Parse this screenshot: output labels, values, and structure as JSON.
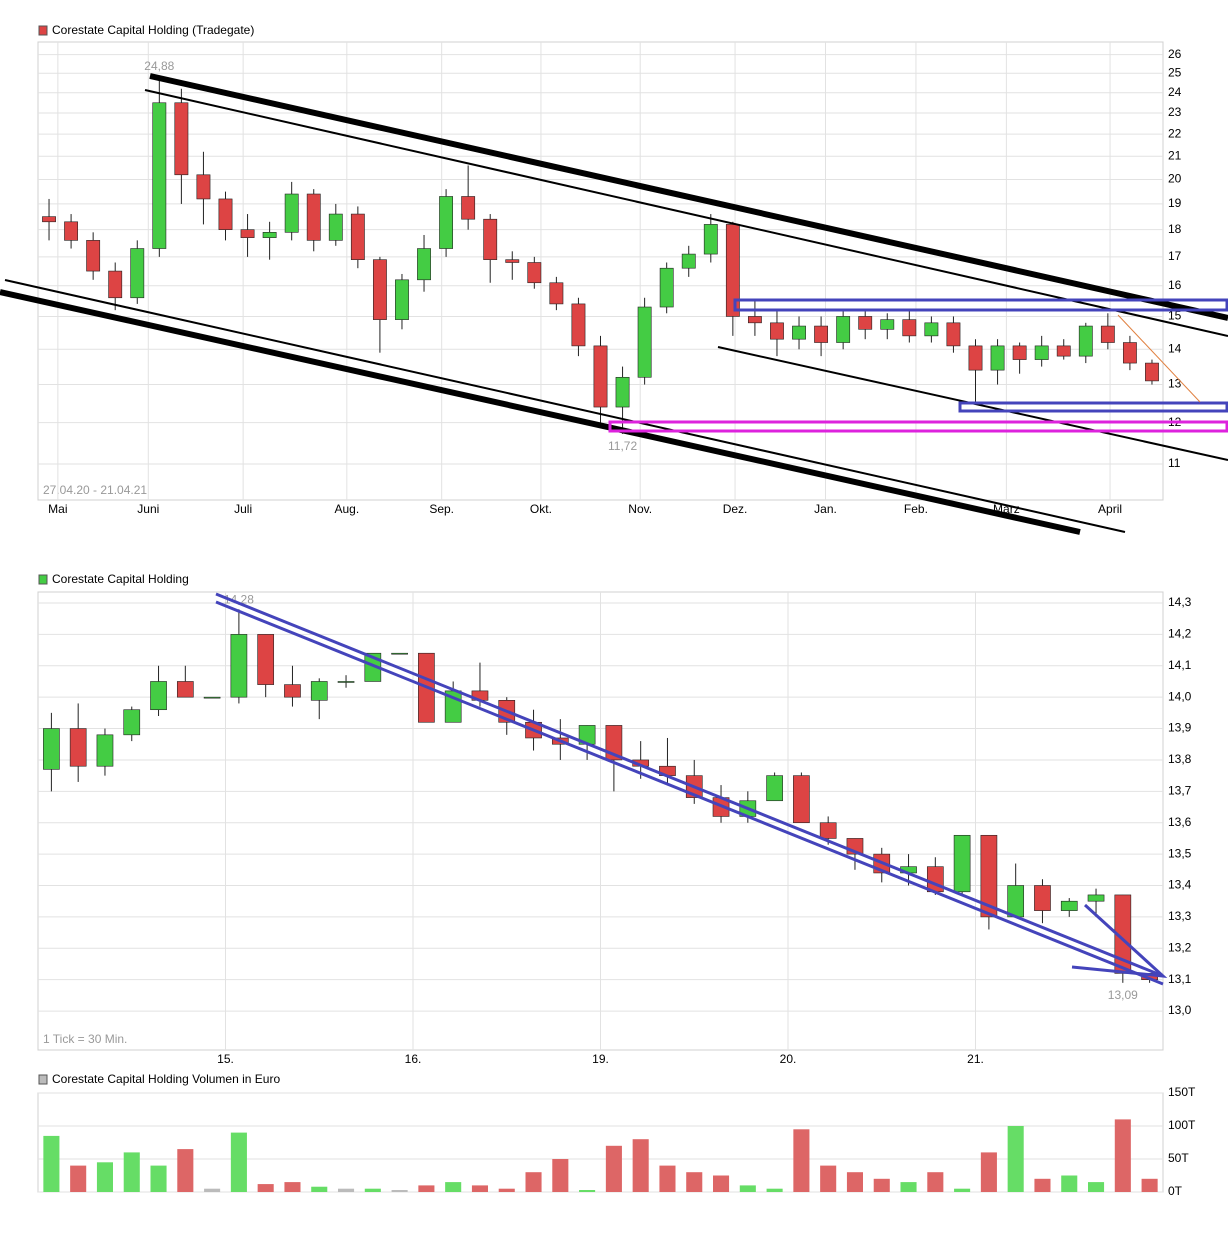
{
  "chart_data": [
    {
      "type": "candlestick",
      "title": "Corestate Capital Holding (Tradegate)",
      "date_range": "27.04.20 - 21.04.21",
      "max_label": "24,88",
      "min_label": "11,72",
      "log": true,
      "grid": true,
      "up_color": "#44cc44",
      "down_color": "#dd4444",
      "open": [
        18.5,
        18.3,
        17.6,
        16.5,
        15.6,
        17.3,
        23.5,
        20.2,
        19.2,
        18.0,
        17.7,
        17.9,
        19.4,
        17.6,
        18.6,
        16.9,
        14.9,
        16.2,
        17.3,
        19.3,
        18.4,
        16.9,
        16.8,
        16.1,
        15.4,
        14.1,
        12.4,
        13.2,
        15.3,
        16.6,
        17.1,
        18.2,
        15.0,
        14.8,
        14.3,
        14.7,
        14.2,
        15.0,
        14.6,
        14.9,
        14.4,
        14.8,
        14.1,
        13.4,
        14.1,
        13.7,
        14.1,
        13.8,
        14.7,
        14.2,
        13.6
      ],
      "high": [
        19.2,
        18.6,
        17.9,
        16.8,
        17.6,
        24.88,
        24.2,
        21.2,
        19.5,
        18.6,
        18.3,
        19.9,
        19.6,
        19.0,
        18.9,
        17.0,
        16.4,
        17.8,
        19.6,
        20.6,
        18.6,
        17.2,
        17.0,
        16.3,
        15.6,
        14.4,
        13.5,
        15.6,
        16.8,
        17.4,
        18.6,
        18.3,
        15.5,
        15.2,
        15.0,
        15.0,
        15.2,
        15.2,
        15.1,
        15.2,
        15.0,
        15.0,
        14.3,
        14.3,
        14.2,
        14.4,
        14.3,
        14.8,
        15.1,
        14.4,
        13.7
      ],
      "low": [
        17.6,
        17.3,
        16.2,
        15.2,
        15.4,
        17.0,
        19.0,
        18.2,
        17.6,
        17.0,
        16.9,
        17.6,
        17.2,
        17.4,
        16.6,
        13.9,
        14.6,
        15.8,
        17.0,
        18.0,
        16.1,
        16.2,
        15.9,
        15.2,
        13.8,
        12.0,
        11.72,
        13.0,
        15.1,
        16.3,
        16.8,
        14.4,
        14.4,
        13.8,
        14.0,
        13.8,
        14.0,
        14.3,
        14.3,
        14.2,
        14.2,
        13.9,
        12.5,
        13.0,
        13.3,
        13.5,
        13.7,
        13.6,
        14.0,
        13.4,
        13.0
      ],
      "close": [
        18.3,
        17.6,
        16.5,
        15.6,
        17.3,
        23.5,
        20.2,
        19.2,
        18.0,
        17.7,
        17.9,
        19.4,
        17.6,
        18.6,
        16.9,
        14.9,
        16.2,
        17.3,
        19.3,
        18.4,
        16.9,
        16.8,
        16.1,
        15.4,
        14.1,
        12.4,
        13.2,
        15.3,
        16.6,
        17.1,
        18.2,
        15.0,
        14.8,
        14.3,
        14.7,
        14.2,
        15.0,
        14.6,
        14.9,
        14.4,
        14.8,
        14.1,
        13.4,
        14.1,
        13.7,
        14.1,
        13.8,
        14.7,
        14.2,
        13.6,
        13.1
      ],
      "xlim": [
        0,
        51
      ],
      "xticks": [
        {
          "value": 0.9,
          "label": "Mai"
        },
        {
          "value": 5,
          "label": "Juni"
        },
        {
          "value": 9.3,
          "label": "Juli"
        },
        {
          "value": 14,
          "label": "Aug."
        },
        {
          "value": 18.3,
          "label": "Sep."
        },
        {
          "value": 22.8,
          "label": "Okt."
        },
        {
          "value": 27.3,
          "label": "Nov."
        },
        {
          "value": 31.6,
          "label": "Dez."
        },
        {
          "value": 35.7,
          "label": "Jan."
        },
        {
          "value": 39.8,
          "label": "Feb."
        },
        {
          "value": 43.9,
          "label": "März"
        },
        {
          "value": 48.6,
          "label": "April"
        }
      ],
      "ylim": [
        10.2,
        26.7
      ],
      "yticks": [
        11,
        12,
        13,
        14,
        15,
        16,
        17,
        18,
        19,
        20,
        21,
        22,
        23,
        24,
        25,
        26
      ]
    },
    {
      "type": "candlestick",
      "title": "Corestate Capital Holding",
      "footnote": "1 Tick = 30 Min.",
      "max_label": "14,28",
      "min_label": "13,09",
      "log": false,
      "grid": true,
      "up_color": "#44cc44",
      "down_color": "#dd4444",
      "open": [
        13.77,
        13.9,
        13.78,
        13.88,
        13.96,
        14.05,
        14.0,
        14.0,
        14.2,
        14.04,
        13.99,
        14.05,
        14.05,
        14.14,
        14.14,
        13.92,
        14.02,
        13.99,
        13.92,
        13.87,
        13.85,
        13.91,
        13.8,
        13.78,
        13.75,
        13.68,
        13.62,
        13.67,
        13.75,
        13.6,
        13.55,
        13.5,
        13.44,
        13.46,
        13.38,
        13.56,
        13.3,
        13.4,
        13.32,
        13.35,
        13.37,
        13.12
      ],
      "high": [
        13.95,
        13.98,
        13.9,
        13.97,
        14.1,
        14.1,
        14.0,
        14.28,
        14.2,
        14.1,
        14.06,
        14.07,
        14.14,
        14.14,
        14.14,
        14.05,
        14.11,
        14.0,
        13.96,
        13.93,
        13.91,
        13.91,
        13.86,
        13.87,
        13.8,
        13.72,
        13.7,
        13.76,
        13.76,
        13.62,
        13.55,
        13.52,
        13.5,
        13.49,
        13.56,
        13.56,
        13.47,
        13.42,
        13.36,
        13.39,
        13.37,
        13.12
      ],
      "low": [
        13.7,
        13.73,
        13.75,
        13.86,
        13.94,
        14.0,
        14.0,
        13.98,
        14.0,
        13.97,
        13.93,
        14.03,
        14.05,
        14.14,
        13.92,
        13.92,
        13.97,
        13.88,
        13.83,
        13.8,
        13.8,
        13.7,
        13.74,
        13.72,
        13.66,
        13.6,
        13.6,
        13.67,
        13.6,
        13.53,
        13.45,
        13.41,
        13.4,
        13.37,
        13.37,
        13.26,
        13.3,
        13.28,
        13.3,
        13.3,
        13.09,
        13.09
      ],
      "close": [
        13.9,
        13.78,
        13.88,
        13.96,
        14.05,
        14.0,
        14.0,
        14.2,
        14.04,
        14.0,
        14.05,
        14.05,
        14.14,
        14.14,
        13.92,
        14.02,
        13.99,
        13.92,
        13.87,
        13.85,
        13.91,
        13.8,
        13.78,
        13.75,
        13.68,
        13.62,
        13.67,
        13.75,
        13.6,
        13.55,
        13.5,
        13.44,
        13.46,
        13.38,
        13.56,
        13.3,
        13.4,
        13.32,
        13.35,
        13.37,
        13.12,
        13.1
      ],
      "xlim": [
        0,
        42
      ],
      "xticks": [
        {
          "value": 7,
          "label": "15."
        },
        {
          "value": 14,
          "label": "16."
        },
        {
          "value": 21,
          "label": "19."
        },
        {
          "value": 28,
          "label": "20."
        },
        {
          "value": 35,
          "label": "21."
        }
      ],
      "ylim": [
        12.876,
        14.335
      ],
      "yticks": [
        {
          "value": 13.0,
          "label": "13,0"
        },
        {
          "value": 13.1,
          "label": "13,1"
        },
        {
          "value": 13.2,
          "label": "13,2"
        },
        {
          "value": 13.3,
          "label": "13,3"
        },
        {
          "value": 13.4,
          "label": "13,4"
        },
        {
          "value": 13.5,
          "label": "13,5"
        },
        {
          "value": 13.6,
          "label": "13,6"
        },
        {
          "value": 13.7,
          "label": "13,7"
        },
        {
          "value": 13.8,
          "label": "13,8"
        },
        {
          "value": 13.9,
          "label": "13,9"
        },
        {
          "value": 14.0,
          "label": "14,0"
        },
        {
          "value": 14.1,
          "label": "14,1"
        },
        {
          "value": 14.2,
          "label": "14,2"
        },
        {
          "value": 14.3,
          "label": "14,3"
        }
      ]
    },
    {
      "type": "bar",
      "title": "Corestate Capital Holding Volumen in Euro",
      "grid": true,
      "up_color": "#66dd66",
      "down_color": "#dd6666",
      "flat_color": "#bbbbbb",
      "values": [
        85000,
        40000,
        45000,
        60000,
        40000,
        65000,
        5000,
        90000,
        12000,
        15000,
        8000,
        5000,
        5000,
        3000,
        10000,
        15000,
        10000,
        5000,
        30000,
        50000,
        3000,
        70000,
        80000,
        40000,
        30000,
        25000,
        10000,
        5000,
        95000,
        40000,
        30000,
        20000,
        15000,
        30000,
        5000,
        60000,
        100000,
        20000,
        25000,
        15000,
        110000,
        20000
      ],
      "xlim": [
        0,
        42
      ],
      "ylim": [
        0,
        150000
      ],
      "yticks": [
        {
          "value": 0,
          "label": "0T"
        },
        {
          "value": 50000,
          "label": "50T"
        },
        {
          "value": 100000,
          "label": "100T"
        },
        {
          "value": 150000,
          "label": "150T"
        }
      ]
    }
  ]
}
